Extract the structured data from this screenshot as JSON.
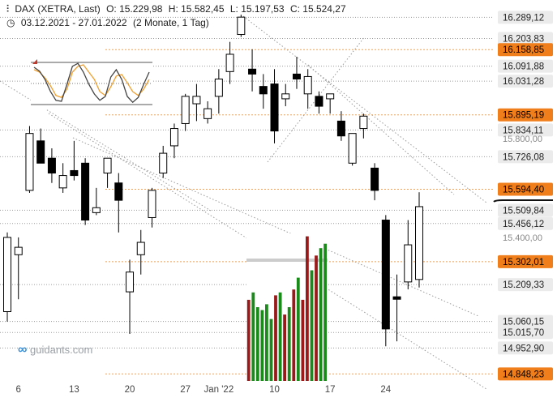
{
  "header": {
    "symbol_line": "DAX (XETRA, Last)",
    "open": "O: 15.229,98",
    "high": "H: 15.582,45",
    "low": "L: 15.197,53",
    "close": "C: 15.524,27",
    "date_range": "03.12.2021 - 27.01.2022",
    "period": "(2 Monate, 1 Tag)"
  },
  "watermark": {
    "text": "guidants.com"
  },
  "colors": {
    "orange_tag": "#f07e1a",
    "grey_tag": "#ebebeb",
    "black_tag": "#111111",
    "candle_up": "#ffffff",
    "candle_down": "#000000",
    "stoch_fast": "#f0a030",
    "stoch_slow": "#444444",
    "volume_up": "#1a8a1a",
    "volume_down": "#9a1a1a"
  },
  "chart_data": {
    "type": "candlestick",
    "symbol": "DAX (XETRA, Last)",
    "x_tick_labels": [
      "6",
      "13",
      "20",
      "27",
      "Jan '22",
      "10",
      "17",
      "24"
    ],
    "x_tick_index": [
      1,
      6,
      11,
      16,
      19,
      24,
      29,
      34
    ],
    "y_range": [
      14820,
      16320
    ],
    "price_labels": [
      {
        "text": "16.289,12",
        "value": 16289.12,
        "style": "grey"
      },
      {
        "text": "16.203,83",
        "value": 16203.83,
        "style": "grey"
      },
      {
        "text": "16.158,85",
        "value": 16158.85,
        "style": "orange"
      },
      {
        "text": "16.091,88",
        "value": 16091.88,
        "style": "grey"
      },
      {
        "text": "16.031,28",
        "value": 16031.28,
        "style": "grey"
      },
      {
        "text": "15.895,19",
        "value": 15895.19,
        "style": "orange"
      },
      {
        "text": "15.834,11",
        "value": 15834.11,
        "style": "grey"
      },
      {
        "text": "15.800,00",
        "value": 15800.0,
        "style": "axis"
      },
      {
        "text": "15.726,08",
        "value": 15726.08,
        "style": "grey"
      },
      {
        "text": "15.594,40",
        "value": 15594.4,
        "style": "orange"
      },
      {
        "text": "15.509,84",
        "value": 15509.84,
        "style": "grey"
      },
      {
        "text": "15.456,12",
        "value": 15456.12,
        "style": "grey"
      },
      {
        "text": "15.400,00",
        "value": 15400.0,
        "style": "axis"
      },
      {
        "text": "15.302,01",
        "value": 15302.01,
        "style": "orange"
      },
      {
        "text": "15.209,33",
        "value": 15209.33,
        "style": "grey"
      },
      {
        "text": "15.060,15",
        "value": 15060.15,
        "style": "grey"
      },
      {
        "text": "15.015,70",
        "value": 15015.7,
        "style": "grey"
      },
      {
        "text": "14.952,90",
        "value": 14952.9,
        "style": "grey"
      },
      {
        "text": "14.848,23",
        "value": 14848.23,
        "style": "orange"
      }
    ],
    "current_price": 15524.27,
    "candles": [
      {
        "o": 15100,
        "h": 15420,
        "l": 15060,
        "c": 15400
      },
      {
        "o": 15330,
        "h": 15400,
        "l": 15150,
        "c": 15360
      },
      {
        "o": 15590,
        "h": 15850,
        "l": 15580,
        "c": 15820
      },
      {
        "o": 15790,
        "h": 15840,
        "l": 15700,
        "c": 15700
      },
      {
        "o": 15720,
        "h": 15760,
        "l": 15620,
        "c": 15660
      },
      {
        "o": 15600,
        "h": 15700,
        "l": 15580,
        "c": 15650
      },
      {
        "o": 15670,
        "h": 15790,
        "l": 15630,
        "c": 15650
      },
      {
        "o": 15700,
        "h": 15720,
        "l": 15450,
        "c": 15470
      },
      {
        "o": 15500,
        "h": 15600,
        "l": 15490,
        "c": 15520
      },
      {
        "o": 15660,
        "h": 15720,
        "l": 15600,
        "c": 15720
      },
      {
        "o": 15620,
        "h": 15660,
        "l": 15420,
        "c": 15550
      },
      {
        "o": 15180,
        "h": 15310,
        "l": 15010,
        "c": 15260
      },
      {
        "o": 15330,
        "h": 15430,
        "l": 15250,
        "c": 15380
      },
      {
        "o": 15480,
        "h": 15600,
        "l": 15440,
        "c": 15590
      },
      {
        "o": 15660,
        "h": 15770,
        "l": 15640,
        "c": 15740
      },
      {
        "o": 15770,
        "h": 15860,
        "l": 15720,
        "c": 15840
      },
      {
        "o": 15860,
        "h": 15980,
        "l": 15830,
        "c": 15970
      },
      {
        "o": 15940,
        "h": 16020,
        "l": 15870,
        "c": 15970
      },
      {
        "o": 15880,
        "h": 15950,
        "l": 15860,
        "c": 15920
      },
      {
        "o": 15970,
        "h": 16080,
        "l": 15900,
        "c": 16040
      },
      {
        "o": 16070,
        "h": 16190,
        "l": 16020,
        "c": 16140
      },
      {
        "o": 16220,
        "h": 16300,
        "l": 16210,
        "c": 16290
      },
      {
        "o": 16080,
        "h": 16160,
        "l": 15990,
        "c": 16060
      },
      {
        "o": 16010,
        "h": 16060,
        "l": 15920,
        "c": 15980
      },
      {
        "o": 16020,
        "h": 16080,
        "l": 15780,
        "c": 15830
      },
      {
        "o": 15960,
        "h": 16020,
        "l": 15930,
        "c": 15980
      },
      {
        "o": 16060,
        "h": 16130,
        "l": 16000,
        "c": 16040
      },
      {
        "o": 15980,
        "h": 16080,
        "l": 15920,
        "c": 16050
      },
      {
        "o": 15970,
        "h": 15990,
        "l": 15900,
        "c": 15930
      },
      {
        "o": 15960,
        "h": 15980,
        "l": 15900,
        "c": 15980
      },
      {
        "o": 15870,
        "h": 15910,
        "l": 15790,
        "c": 15810
      },
      {
        "o": 15700,
        "h": 15820,
        "l": 15690,
        "c": 15820
      },
      {
        "o": 15840,
        "h": 15900,
        "l": 15800,
        "c": 15890
      },
      {
        "o": 15680,
        "h": 15700,
        "l": 15550,
        "c": 15590
      },
      {
        "o": 15470,
        "h": 15490,
        "l": 14960,
        "c": 15030
      },
      {
        "o": 15160,
        "h": 15250,
        "l": 14980,
        "c": 15150
      },
      {
        "o": 15220,
        "h": 15470,
        "l": 15190,
        "c": 15370
      },
      {
        "o": 15230,
        "h": 15582.45,
        "l": 15197.53,
        "c": 15524.27
      }
    ],
    "stochastic_inset": {
      "series": [
        {
          "values": [
            75,
            70,
            58,
            42,
            22,
            18,
            35,
            70,
            82,
            85,
            70,
            55,
            30,
            22,
            40,
            62,
            65,
            48,
            30,
            22,
            35,
            55
          ]
        },
        {
          "values": [
            80,
            72,
            55,
            30,
            12,
            10,
            45,
            82,
            88,
            70,
            45,
            25,
            12,
            20,
            60,
            75,
            55,
            20,
            8,
            18,
            45,
            70
          ]
        }
      ]
    },
    "volume_inset": {
      "values": [
        0.55,
        0.6,
        0.5,
        0.48,
        0.52,
        0.42,
        0.58,
        0.6,
        0.45,
        0.5,
        0.62,
        0.7,
        0.55,
        0.98,
        0.75,
        0.85,
        0.9,
        0.93
      ],
      "up": [
        false,
        true,
        true,
        true,
        true,
        true,
        false,
        true,
        false,
        true,
        false,
        true,
        false,
        false,
        true,
        false,
        true,
        true
      ]
    }
  }
}
